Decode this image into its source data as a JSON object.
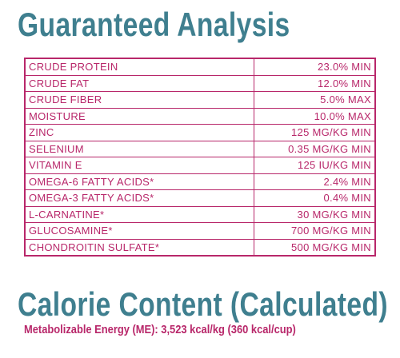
{
  "header": {
    "title": "Guaranteed Analysis"
  },
  "table": {
    "rows": [
      [
        "CRUDE PROTEIN",
        "23.0% MIN"
      ],
      [
        "CRUDE FAT",
        "12.0% MIN"
      ],
      [
        "CRUDE FIBER",
        "5.0% MAX"
      ],
      [
        "MOISTURE",
        "10.0% MAX"
      ],
      [
        "ZINC",
        "125 MG/KG MIN"
      ],
      [
        "SELENIUM",
        "0.35 MG/KG MIN"
      ],
      [
        "VITAMIN E",
        "125 IU/KG MIN"
      ],
      [
        "OMEGA-6 FATTY ACIDS*",
        "2.4% MIN"
      ],
      [
        "OMEGA-3 FATTY ACIDS*",
        "0.4% MIN"
      ],
      [
        "L-CARNATINE*",
        "30 MG/KG MIN"
      ],
      [
        "GLUCOSAMINE*",
        "700 MG/KG MIN"
      ],
      [
        "CHONDROITIN SULFATE*",
        "500 MG/KG MIN"
      ]
    ]
  },
  "calorie": {
    "title": "Calorie Content (Calculated)",
    "text": "Metabolizable Energy (ME): 3,523 kcal/kg (360 kcal/cup)"
  }
}
